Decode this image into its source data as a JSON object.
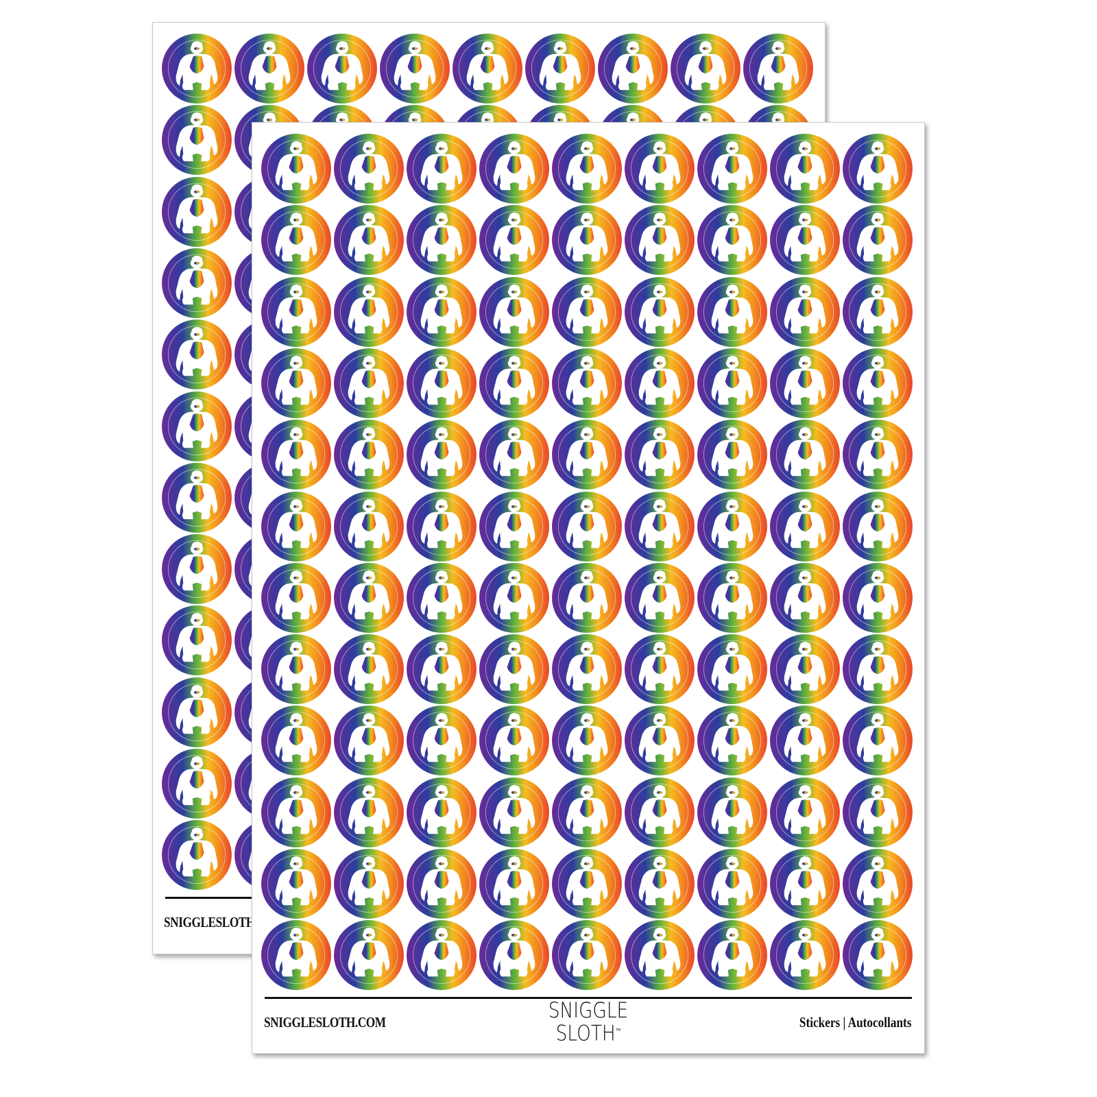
{
  "product": {
    "sticker_design": "rainbow-gorilla-circle",
    "colors": {
      "purple": "#6b2a97",
      "blue": "#2b3d9e",
      "green": "#5db33b",
      "yellow": "#f6bb21",
      "orange": "#f28b1f",
      "red": "#e8452b"
    }
  },
  "back_sheet": {
    "website": "SNIGGLESLOTH.COM"
  },
  "front_sheet": {
    "website": "SNIGGLESLOTH.COM",
    "logo": {
      "line1": "SNIGGLE",
      "line2": "SLOTH",
      "trademark": "™"
    },
    "tags": "Stickers  |  Autocollants"
  }
}
